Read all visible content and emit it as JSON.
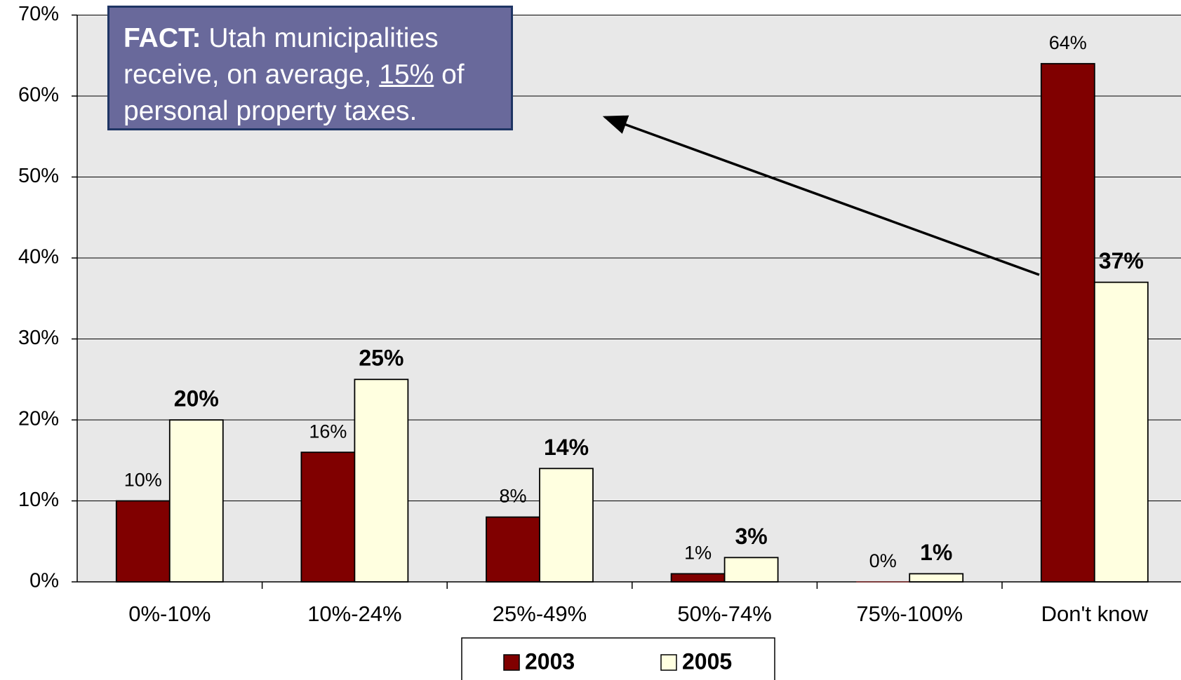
{
  "chart_data": {
    "type": "bar",
    "annotation": [
      "FACT:",
      " Utah municipalities receive, on average, ",
      "15%",
      " of personal property taxes."
    ],
    "categories": [
      "0%-10%",
      "10%-24%",
      "25%-49%",
      "50%-74%",
      "75%-100%",
      "Don't know"
    ],
    "series": [
      {
        "name": "2003",
        "color": "#800000",
        "values": [
          10,
          16,
          8,
          1,
          0,
          64
        ],
        "value_labels": [
          "10%",
          "16%",
          "8%",
          "1%",
          "0%",
          "64%"
        ]
      },
      {
        "name": "2005",
        "color": "#ffffe0",
        "values": [
          20,
          25,
          14,
          3,
          1,
          37
        ],
        "value_labels": [
          "20%",
          "25%",
          "14%",
          "3%",
          "1%",
          "37%"
        ]
      }
    ],
    "ylim": [
      0,
      70
    ],
    "yticks": [
      {
        "value": 0,
        "label": "0%"
      },
      {
        "value": 10,
        "label": "10%"
      },
      {
        "value": 20,
        "label": "20%"
      },
      {
        "value": 30,
        "label": "30%"
      },
      {
        "value": 40,
        "label": "40%"
      },
      {
        "value": 50,
        "label": "50%"
      },
      {
        "value": 60,
        "label": "60%"
      },
      {
        "value": 70,
        "label": "70%"
      }
    ],
    "grid": true
  }
}
